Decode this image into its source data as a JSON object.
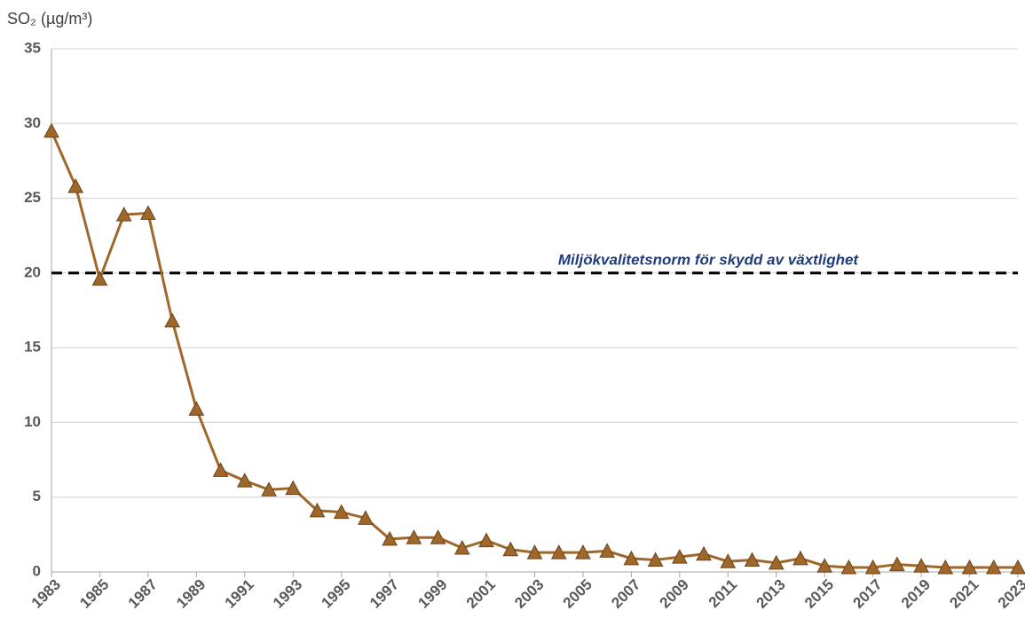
{
  "chart_data": {
    "type": "line",
    "y_label": "SO₂ (µg/m³)",
    "x": [
      1983,
      1984,
      1985,
      1986,
      1987,
      1988,
      1989,
      1990,
      1991,
      1992,
      1993,
      1994,
      1995,
      1996,
      1997,
      1998,
      1999,
      2000,
      2001,
      2002,
      2003,
      2004,
      2005,
      2006,
      2007,
      2008,
      2009,
      2010,
      2011,
      2012,
      2013,
      2014,
      2015,
      2016,
      2017,
      2018,
      2019,
      2020,
      2021,
      2022,
      2023
    ],
    "values": [
      29.5,
      25.8,
      19.6,
      23.9,
      24.0,
      16.8,
      10.9,
      6.8,
      6.1,
      5.5,
      5.6,
      4.1,
      4.0,
      3.6,
      2.2,
      2.3,
      2.3,
      1.6,
      2.1,
      1.5,
      1.3,
      1.3,
      1.3,
      1.4,
      0.9,
      0.8,
      1.0,
      1.2,
      0.7,
      0.8,
      0.6,
      0.9,
      0.4,
      0.3,
      0.3,
      0.5,
      0.4,
      0.3,
      0.3,
      0.3,
      0.3
    ],
    "color": "#a0672b",
    "xlim": [
      1983,
      2023
    ],
    "xticks": [
      1983,
      1985,
      1987,
      1989,
      1991,
      1993,
      1995,
      1997,
      1999,
      2001,
      2003,
      2005,
      2007,
      2009,
      2011,
      2013,
      2015,
      2017,
      2019,
      2021,
      2023
    ],
    "ylim": [
      0,
      35
    ],
    "yticks": [
      0,
      5,
      10,
      15,
      20,
      25,
      30,
      35
    ],
    "grid": true,
    "reference_line": {
      "value": 20,
      "label": "Miljökvalitetsnorm för skydd av växtlighet",
      "color": "#000000",
      "label_color": "#1f3d7a"
    }
  }
}
